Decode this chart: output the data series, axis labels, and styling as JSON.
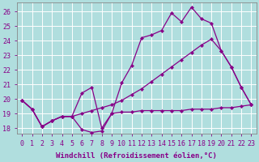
{
  "background_color": "#b0dede",
  "grid_color": "#c8c8c8",
  "line_color": "#880088",
  "xlabel": "Windchill (Refroidissement éolien,°C)",
  "xlim": [
    -0.5,
    23.5
  ],
  "ylim": [
    17.6,
    26.6
  ],
  "yticks": [
    18,
    19,
    20,
    21,
    22,
    23,
    24,
    25,
    26
  ],
  "xticks": [
    0,
    1,
    2,
    3,
    4,
    5,
    6,
    7,
    8,
    9,
    10,
    11,
    12,
    13,
    14,
    15,
    16,
    17,
    18,
    19,
    20,
    21,
    22,
    23
  ],
  "line1_x": [
    0,
    1,
    2,
    3,
    4,
    5,
    6,
    7,
    8,
    9,
    10,
    11,
    12,
    13,
    14,
    15,
    16,
    17,
    18,
    19,
    20,
    21,
    22,
    23
  ],
  "line1_y": [
    19.9,
    19.3,
    18.1,
    18.5,
    18.8,
    18.8,
    17.9,
    17.7,
    17.8,
    19.0,
    19.1,
    19.1,
    19.2,
    19.2,
    19.2,
    19.2,
    19.2,
    19.3,
    19.3,
    19.3,
    19.4,
    19.4,
    19.5,
    19.6
  ],
  "line2_x": [
    0,
    1,
    2,
    3,
    4,
    5,
    6,
    7,
    8,
    9,
    10,
    11,
    12,
    13,
    14,
    15,
    16,
    17,
    18,
    19,
    20,
    21,
    22,
    23
  ],
  "line2_y": [
    19.9,
    19.3,
    18.1,
    18.5,
    18.8,
    18.8,
    20.4,
    20.8,
    18.0,
    19.0,
    21.1,
    22.3,
    24.2,
    24.4,
    24.7,
    25.9,
    25.3,
    26.3,
    25.5,
    25.2,
    23.3,
    22.2,
    20.8,
    19.6
  ],
  "line3_x": [
    0,
    1,
    2,
    3,
    4,
    5,
    6,
    7,
    8,
    9,
    10,
    11,
    12,
    13,
    14,
    15,
    16,
    17,
    18,
    19,
    20,
    21,
    22,
    23
  ],
  "line3_y": [
    19.9,
    19.3,
    18.1,
    18.5,
    18.8,
    18.8,
    19.0,
    19.2,
    19.4,
    19.6,
    19.9,
    20.3,
    20.7,
    21.2,
    21.7,
    22.2,
    22.7,
    23.2,
    23.7,
    24.1,
    23.3,
    22.2,
    20.8,
    19.6
  ],
  "xlabel_fontsize": 6.5,
  "tick_fontsize": 6,
  "figsize": [
    3.2,
    2.0
  ],
  "dpi": 100
}
